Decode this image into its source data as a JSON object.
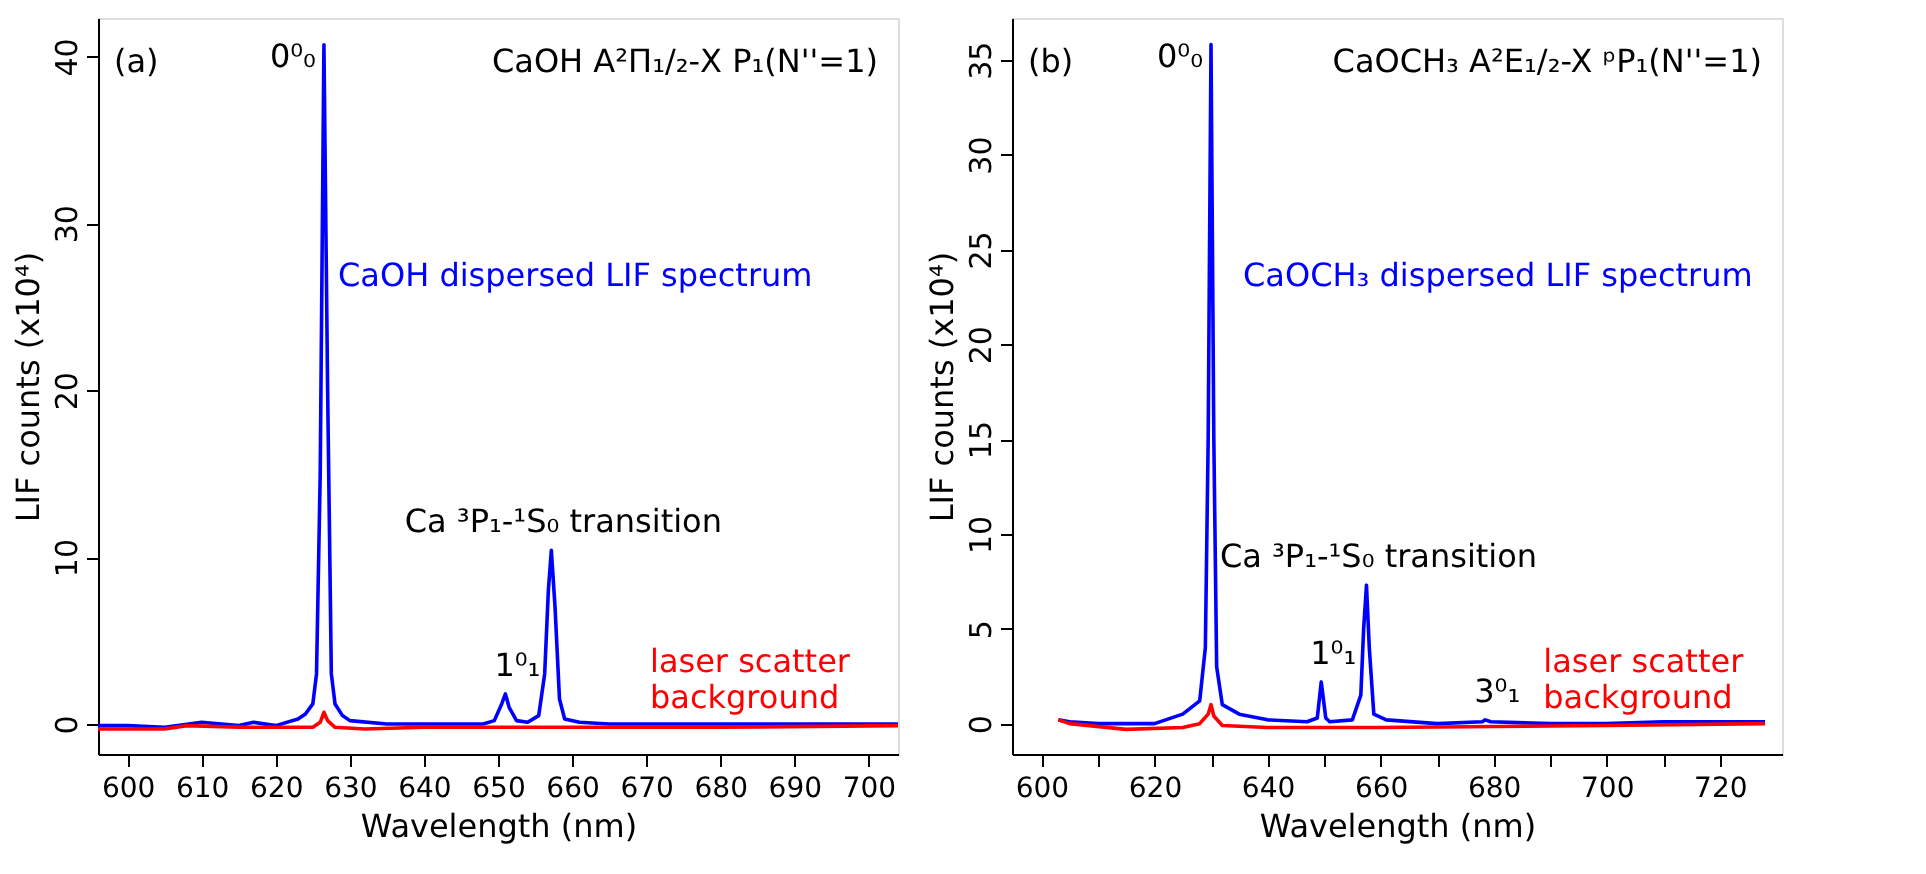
{
  "chart_data": [
    {
      "type": "line",
      "title": "CaOH A²Π₁/₂-X P₁(N''=1)",
      "xlabel": "Wavelength (nm)",
      "ylabel": "LIF counts (x10⁴)",
      "xlim": [
        596,
        704
      ],
      "xticks": [
        600,
        610,
        620,
        630,
        640,
        650,
        660,
        670,
        680,
        690,
        700
      ],
      "ylim": [
        -1.8,
        42.3
      ],
      "yticks": [
        0,
        10,
        20,
        30,
        40
      ],
      "grid": false,
      "line_style": "solid",
      "series": [
        {
          "name": "CaOH dispersed LIF spectrum",
          "color": "#0000ff",
          "x": [
            596,
            600,
            605,
            610,
            615,
            617,
            620,
            623,
            624,
            625,
            625.5,
            626,
            626.5,
            627,
            627.5,
            628,
            629,
            630,
            635,
            640,
            645,
            648,
            649.5,
            650.5,
            651,
            651.5,
            652.5,
            654,
            655.5,
            656.3,
            656.8,
            657.2,
            657.7,
            658.3,
            659,
            661,
            665,
            670,
            680,
            690,
            700,
            704
          ],
          "values": [
            -0.1,
            -0.1,
            -0.2,
            0.1,
            -0.1,
            0.1,
            -0.1,
            0.3,
            0.6,
            1.2,
            3,
            15,
            40.7,
            20,
            3,
            1.2,
            0.5,
            0.2,
            0,
            0,
            0,
            0,
            0.2,
            1.2,
            1.8,
            1.0,
            0.2,
            0.1,
            0.5,
            3,
            8,
            10.4,
            7,
            1.5,
            0.3,
            0.1,
            0,
            0,
            0,
            0,
            0,
            0
          ]
        },
        {
          "name": "laser scatter\nbackground",
          "color": "#ff0000",
          "x": [
            596,
            605,
            608,
            615,
            625,
            626,
            626.5,
            627,
            628,
            632,
            640,
            660,
            680,
            704
          ],
          "values": [
            -0.3,
            -0.3,
            -0.1,
            -0.2,
            -0.2,
            0.1,
            0.7,
            0.2,
            -0.2,
            -0.3,
            -0.2,
            -0.2,
            -0.2,
            -0.1
          ]
        }
      ],
      "annotations": [
        "(a)",
        {
          "text": "0⁰₀",
          "x": 626.5,
          "y": 40.7
        },
        {
          "text": "1⁰₁",
          "x": 651,
          "y": 1.8
        },
        {
          "text": "Ca ³P₁-¹S₀ transition",
          "x": 657.2,
          "y": 10.4
        }
      ]
    },
    {
      "type": "line",
      "title": "CaOCH₃ A²E₁/₂-X ᵖP₁(N''=1)",
      "xlabel": "Wavelength (nm)",
      "ylabel": "LIF counts (x10⁴)",
      "xlim": [
        594.8,
        731
      ],
      "xticks": [
        600,
        {
          "value": 610,
          "label": null
        },
        620,
        {
          "value": 630,
          "label": null
        },
        640,
        {
          "value": 650,
          "label": null
        },
        660,
        {
          "value": 670,
          "label": null
        },
        680,
        {
          "value": 690,
          "label": null
        },
        700,
        {
          "value": 710,
          "label": null
        },
        720
      ],
      "ylim": [
        -1.6,
        37.2
      ],
      "yticks": [
        0,
        5,
        10,
        15,
        20,
        25,
        30,
        35
      ],
      "grid": false,
      "line_style": "solid",
      "series": [
        {
          "name": "CaOCH₃ dispersed LIF spectrum",
          "color": "#0000ff",
          "x": [
            603,
            605,
            610,
            620,
            625,
            628,
            629,
            629.5,
            630,
            630.5,
            631,
            632,
            635,
            640,
            647,
            648.8,
            649.5,
            650.3,
            651,
            655,
            656.5,
            657,
            657.5,
            658,
            658.8,
            661,
            670,
            678,
            678.5,
            679.5,
            690,
            700,
            710,
            720,
            728
          ],
          "values": [
            0.2,
            0.1,
            0,
            0,
            0.5,
            1.2,
            4,
            15,
            35.8,
            15,
            3,
            1,
            0.5,
            0.2,
            0.1,
            0.3,
            2.2,
            0.3,
            0.1,
            0.2,
            1.5,
            5,
            7.3,
            4,
            0.5,
            0.2,
            0,
            0.1,
            0.2,
            0.1,
            0,
            0,
            0.1,
            0.1,
            0.1
          ]
        },
        {
          "name": "laser scatter\nbackground",
          "color": "#ff0000",
          "x": [
            603,
            605,
            615,
            625,
            628,
            629.5,
            630,
            630.5,
            632,
            640,
            660,
            700,
            728
          ],
          "values": [
            0.2,
            0,
            -0.3,
            -0.2,
            0,
            0.5,
            1.0,
            0.4,
            -0.1,
            -0.2,
            -0.2,
            -0.1,
            0
          ]
        }
      ],
      "annotations": [
        "(b)",
        {
          "text": "0⁰₀",
          "x": 630,
          "y": 35.8
        },
        {
          "text": "1⁰₁",
          "x": 649.5,
          "y": 2.2
        },
        {
          "text": "Ca ³P₁-¹S₀ transition",
          "x": 657.5,
          "y": 7.3
        },
        {
          "text": "3⁰₁",
          "x": 678.5,
          "y": 0.2
        }
      ]
    }
  ]
}
